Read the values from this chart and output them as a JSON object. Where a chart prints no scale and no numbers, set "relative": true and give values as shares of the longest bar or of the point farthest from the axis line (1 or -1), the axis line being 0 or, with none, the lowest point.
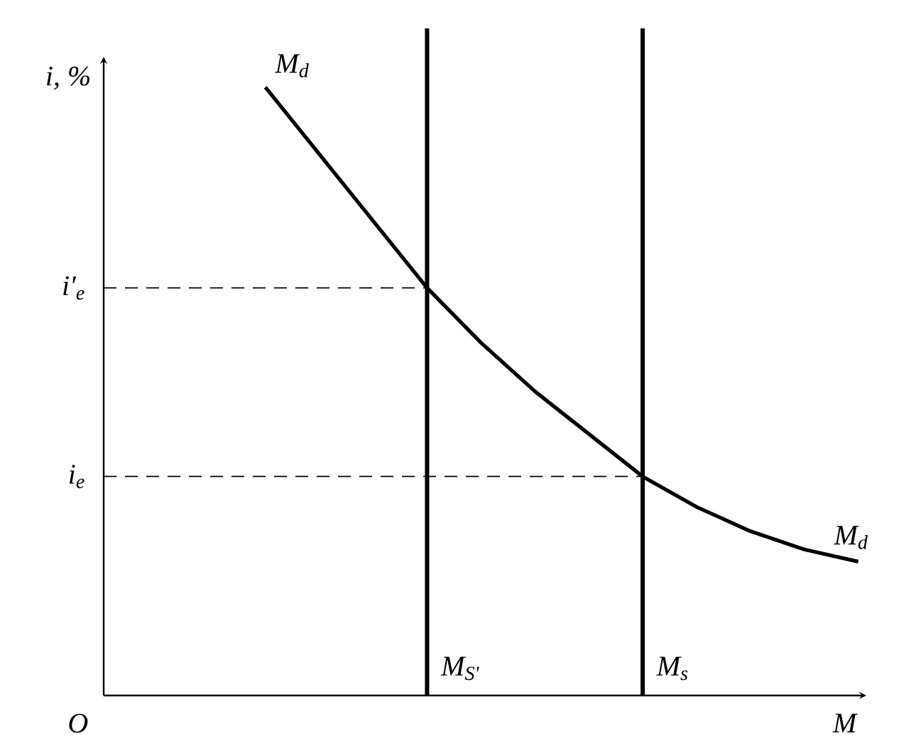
{
  "chart_data": {
    "type": "line",
    "relative": true,
    "xlabel": "M",
    "ylabel": "i, %",
    "categories": [
      null,
      null,
      null,
      null,
      null,
      null,
      null,
      null,
      null,
      null,
      null,
      null,
      null,
      null,
      null
    ],
    "series": [
      {
        "name": "M$_{d}$",
        "color": "#000000",
        "values": [
          null,
          null,
          null,
          1,
          0.89,
          0.78,
          0.67,
          0.58,
          0.5,
          0.43,
          0.36,
          0.31,
          0.27,
          0.24,
          0.22
        ]
      }
    ],
    "ref_lines": [
      {
        "axis": "y",
        "value": 0.67,
        "label": "i′$_{e}$",
        "color": "#000000",
        "line_style": "dashed"
      },
      {
        "axis": "y",
        "value": 0.36,
        "label": "i$_{e}$",
        "color": "#000000",
        "line_style": "dashed"
      }
    ],
    "annotations": [
      "M$_{d}$",
      "O",
      "M$_{S'}$",
      "M$_{s}$"
    ],
    "marker": "none",
    "line_style": "solid"
  }
}
